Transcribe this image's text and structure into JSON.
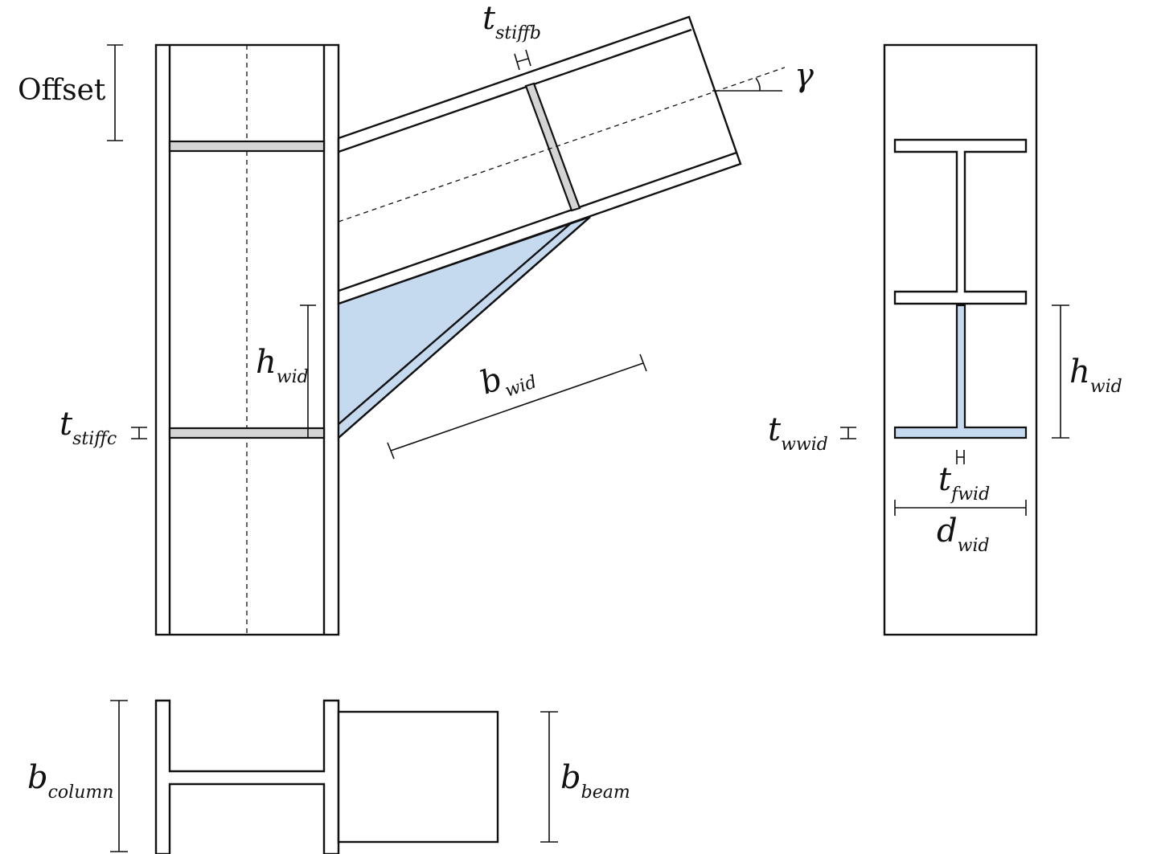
{
  "labels": {
    "offset": "Offset",
    "gamma": "γ",
    "t_stiffb": {
      "main": "t",
      "sub": "stiffb"
    },
    "t_stiffc": {
      "main": "t",
      "sub": "stiffc"
    },
    "h_wid_left": {
      "main": "h",
      "sub": "wid"
    },
    "b_wid": {
      "main": "b",
      "sub": "wid"
    },
    "h_wid_right": {
      "main": "h",
      "sub": "wid"
    },
    "t_wwid": {
      "main": "t",
      "sub": "wwid"
    },
    "t_fwid": {
      "main": "t",
      "sub": "fwid"
    },
    "d_wid": {
      "main": "d",
      "sub": "wid"
    },
    "b_column": {
      "main": "b",
      "sub": "column"
    },
    "b_beam": {
      "main": "b",
      "sub": "beam"
    }
  },
  "colors": {
    "haunch": "#c5d9ef",
    "stiffener": "#d4d4d4",
    "line": "#111111"
  }
}
